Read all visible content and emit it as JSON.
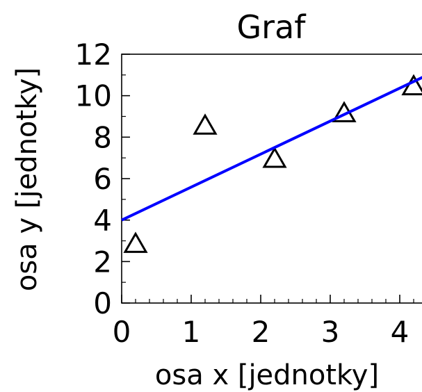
{
  "chart_data": {
    "type": "scatter",
    "title": "Graf",
    "xlabel": "osa x [jednotky]",
    "ylabel": "osa y [jednotky]",
    "xlim": [
      0,
      4.4
    ],
    "ylim": [
      0,
      12
    ],
    "xticks": [
      0,
      1,
      2,
      3,
      4
    ],
    "yticks": [
      0,
      2,
      4,
      6,
      8,
      10,
      12
    ],
    "grid": false,
    "legend": "none",
    "series": [
      {
        "kind": "points",
        "marker": "triangle",
        "color": "#000000",
        "x": [
          0.2,
          1.2,
          2.2,
          3.2,
          4.2
        ],
        "y": [
          2.8,
          8.5,
          6.9,
          9.1,
          10.4
        ]
      },
      {
        "kind": "line",
        "color": "#0000ff",
        "x": [
          0,
          4.4
        ],
        "y": [
          4.0,
          11.0
        ]
      }
    ]
  }
}
